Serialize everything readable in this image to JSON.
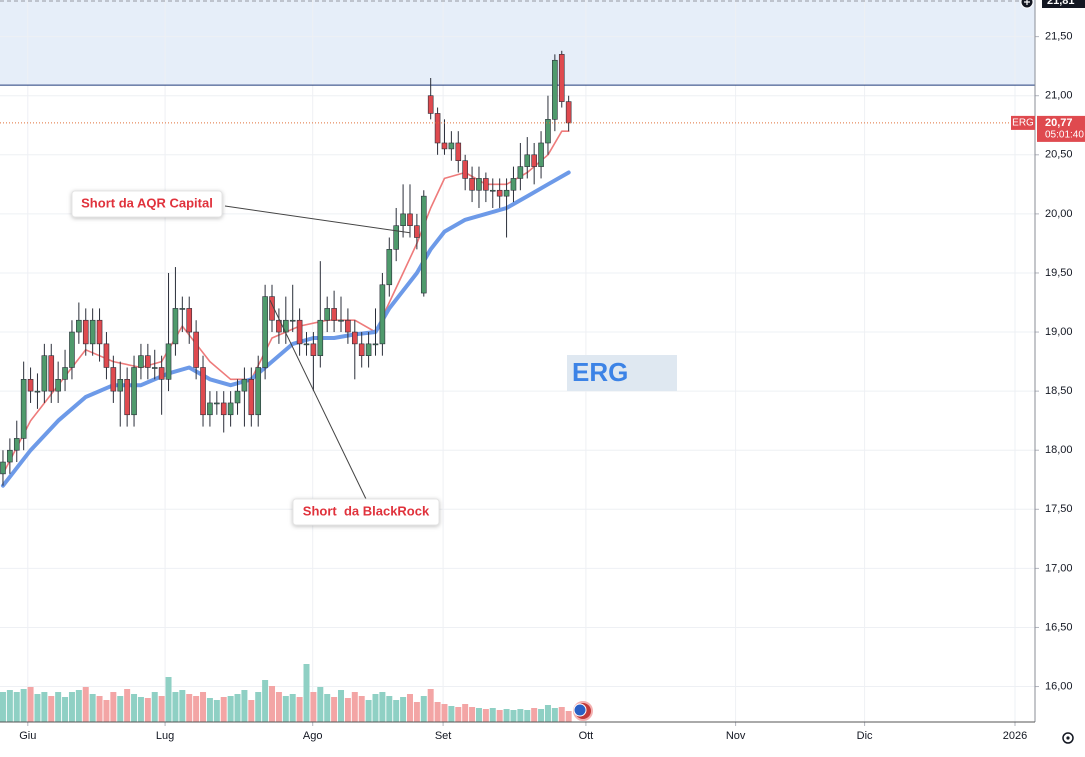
{
  "chart_data": {
    "type": "candlestick",
    "symbol": "ERG",
    "xlim": [
      -0.43,
      149.6
    ],
    "xticks": [
      {
        "value": 3.6,
        "label": "Giu"
      },
      {
        "value": 23.5,
        "label": "Lug"
      },
      {
        "value": 44.9,
        "label": "Ago"
      },
      {
        "value": 63.8,
        "label": "Set"
      },
      {
        "value": 84.5,
        "label": "Ott"
      },
      {
        "value": 106.2,
        "label": "Nov"
      },
      {
        "value": 124.9,
        "label": "Dic"
      },
      {
        "value": 146.7,
        "label": "2026"
      }
    ],
    "ylim": [
      15.7,
      21.81
    ],
    "yticks": [
      {
        "value": 21.5,
        "label": "21,50"
      },
      {
        "value": 21,
        "label": "21,00"
      },
      {
        "value": 20.5,
        "label": "20,50"
      },
      {
        "value": 20,
        "label": "20,00"
      },
      {
        "value": 19.5,
        "label": "19,50"
      },
      {
        "value": 19,
        "label": "19,00"
      },
      {
        "value": 18.5,
        "label": "18,50"
      },
      {
        "value": 18,
        "label": "18,00"
      },
      {
        "value": 17.5,
        "label": "17,50"
      },
      {
        "value": 17,
        "label": "17,00"
      },
      {
        "value": 16.5,
        "label": "16,50"
      },
      {
        "value": 16,
        "label": "16,00"
      }
    ],
    "open": [
      17.8,
      17.9,
      18.0,
      18.1,
      18.6,
      18.5,
      18.5,
      18.8,
      18.5,
      18.6,
      18.7,
      19.0,
      19.1,
      18.9,
      19.1,
      18.9,
      18.7,
      18.5,
      18.6,
      18.3,
      18.7,
      18.8,
      18.7,
      18.7,
      18.6,
      18.9,
      19.2,
      19.2,
      19.0,
      18.7,
      18.3,
      18.4,
      18.4,
      18.3,
      18.4,
      18.5,
      18.6,
      18.3,
      18.7,
      19.3,
      19.1,
      19.0,
      19.1,
      19.1,
      18.9,
      18.9,
      18.8,
      19.1,
      19.2,
      19.1,
      19.1,
      19.0,
      18.9,
      18.8,
      18.9,
      18.9,
      19.4,
      19.7,
      19.9,
      20.0,
      19.9,
      19.33,
      21.0,
      20.85,
      20.6,
      20.55,
      20.6,
      20.45,
      20.3,
      20.2,
      20.3,
      20.2,
      20.2,
      20.15,
      20.2,
      20.3,
      20.4,
      20.5,
      20.4,
      20.6,
      20.8,
      21.35,
      20.95
    ],
    "high": [
      18.0,
      18.1,
      18.25,
      18.75,
      18.7,
      18.65,
      18.9,
      18.9,
      18.75,
      18.85,
      19.1,
      19.25,
      19.2,
      19.2,
      19.2,
      19.0,
      18.8,
      18.75,
      18.7,
      18.8,
      18.9,
      18.9,
      18.85,
      18.8,
      19.5,
      19.55,
      19.3,
      19.3,
      19.1,
      18.8,
      18.5,
      18.5,
      18.5,
      18.5,
      18.6,
      18.7,
      18.7,
      18.8,
      19.4,
      19.4,
      19.2,
      19.3,
      19.4,
      19.2,
      19.0,
      19.0,
      19.6,
      19.3,
      19.35,
      19.3,
      19.2,
      19.1,
      19.0,
      19.0,
      19.2,
      19.5,
      19.8,
      20.05,
      20.25,
      20.25,
      20.0,
      20.2,
      21.15,
      20.9,
      20.8,
      20.7,
      20.7,
      20.5,
      20.4,
      20.4,
      20.35,
      20.3,
      20.3,
      20.3,
      20.4,
      20.6,
      20.65,
      20.6,
      20.7,
      21.0,
      21.35,
      21.38,
      21.0
    ],
    "low": [
      17.7,
      17.8,
      17.9,
      18.0,
      18.4,
      18.35,
      18.4,
      18.4,
      18.4,
      18.5,
      18.6,
      18.9,
      18.8,
      18.8,
      18.75,
      18.6,
      18.4,
      18.2,
      18.2,
      18.2,
      18.6,
      18.6,
      18.6,
      18.3,
      18.5,
      18.8,
      19.0,
      18.9,
      18.6,
      18.2,
      18.2,
      18.3,
      18.15,
      18.2,
      18.3,
      18.2,
      18.2,
      18.2,
      18.6,
      19.0,
      18.9,
      18.9,
      19.0,
      18.8,
      18.8,
      18.5,
      18.7,
      19.0,
      19.0,
      19.0,
      18.9,
      18.6,
      18.7,
      18.7,
      18.8,
      18.8,
      19.3,
      19.6,
      19.8,
      19.8,
      19.7,
      19.3,
      20.8,
      20.5,
      20.5,
      20.45,
      20.35,
      20.2,
      20.1,
      20.05,
      20.1,
      20.05,
      20.05,
      19.8,
      20.1,
      20.2,
      20.3,
      20.25,
      20.3,
      20.5,
      20.7,
      20.9,
      20.7
    ],
    "close": [
      17.9,
      18.0,
      18.1,
      18.6,
      18.5,
      18.5,
      18.8,
      18.5,
      18.6,
      18.7,
      19.0,
      19.1,
      18.9,
      19.1,
      18.9,
      18.7,
      18.5,
      18.6,
      18.3,
      18.7,
      18.8,
      18.7,
      18.7,
      18.6,
      18.9,
      19.2,
      19.2,
      19.0,
      18.7,
      18.3,
      18.4,
      18.4,
      18.3,
      18.4,
      18.5,
      18.6,
      18.3,
      18.7,
      19.3,
      19.1,
      19.0,
      19.1,
      19.1,
      18.9,
      18.9,
      18.8,
      19.1,
      19.2,
      19.1,
      19.1,
      19.0,
      18.9,
      18.8,
      18.9,
      18.9,
      19.4,
      19.7,
      19.9,
      20.0,
      19.9,
      19.8,
      20.15,
      20.85,
      20.6,
      20.55,
      20.6,
      20.45,
      20.3,
      20.2,
      20.3,
      20.2,
      20.2,
      20.15,
      20.2,
      20.3,
      20.4,
      20.5,
      20.4,
      20.6,
      20.8,
      21.3,
      20.95,
      20.77
    ],
    "volume": [
      30,
      32,
      30,
      33,
      35,
      28,
      30,
      26,
      30,
      25,
      30,
      32,
      35,
      28,
      26,
      22,
      30,
      26,
      33,
      28,
      25,
      24,
      30,
      26,
      45,
      30,
      32,
      28,
      26,
      30,
      24,
      22,
      25,
      26,
      28,
      32,
      22,
      30,
      42,
      36,
      30,
      26,
      28,
      25,
      58,
      30,
      35,
      28,
      25,
      32,
      24,
      30,
      26,
      22,
      28,
      30,
      26,
      22,
      25,
      28,
      20,
      26,
      33,
      20,
      18,
      16,
      15,
      18,
      15,
      14,
      13,
      14,
      12,
      13,
      12,
      13,
      12,
      14,
      13,
      17,
      14,
      15,
      11
    ],
    "up_color": "#4f9a6c",
    "down_color": "#df4a4f",
    "volume_up_color": "#8fd0c4",
    "volume_down_color": "#f3a5a5",
    "moving_averages": [
      {
        "color": "#ee7b7b",
        "x": [
          0,
          4,
          8,
          12,
          16,
          20,
          23,
          26,
          30,
          33,
          36,
          39,
          43,
          47,
          51,
          54,
          56,
          58,
          60,
          62,
          64,
          67,
          70,
          73,
          76,
          79,
          81,
          82
        ],
        "values": [
          17.8,
          18.25,
          18.55,
          18.85,
          18.75,
          18.7,
          18.75,
          19.05,
          18.75,
          18.6,
          18.6,
          18.95,
          19.05,
          19.1,
          19.1,
          19.0,
          19.25,
          19.5,
          19.75,
          20.05,
          20.3,
          20.35,
          20.25,
          20.25,
          20.35,
          20.5,
          20.7,
          20.7
        ]
      },
      {
        "color": "#6d9ae8",
        "x": [
          0,
          4,
          8,
          12,
          16,
          20,
          24,
          27,
          30,
          33,
          36,
          39,
          42,
          45,
          48,
          51,
          54,
          56,
          58,
          60,
          62,
          64,
          67,
          70,
          73,
          76,
          79,
          82
        ],
        "values": [
          17.7,
          18.0,
          18.25,
          18.45,
          18.55,
          18.55,
          18.65,
          18.7,
          18.6,
          18.55,
          18.6,
          18.75,
          18.9,
          18.95,
          18.95,
          18.98,
          19.0,
          19.2,
          19.35,
          19.5,
          19.7,
          19.85,
          19.95,
          20.0,
          20.05,
          20.15,
          20.25,
          20.35
        ]
      }
    ],
    "last_price": {
      "value": 20.77,
      "label": "20,77"
    },
    "countdown": "05:01:40",
    "top_price": {
      "value": 21.81,
      "label": "21,81"
    },
    "zone": [
      21.09,
      21.81
    ],
    "annotations": [
      {
        "text": "Short da AQR Capital",
        "x": 59,
        "y": 19.84
      },
      {
        "text": "Short  da BlackRock",
        "x": 38.7,
        "y": 19.27
      }
    ],
    "grid": true
  }
}
